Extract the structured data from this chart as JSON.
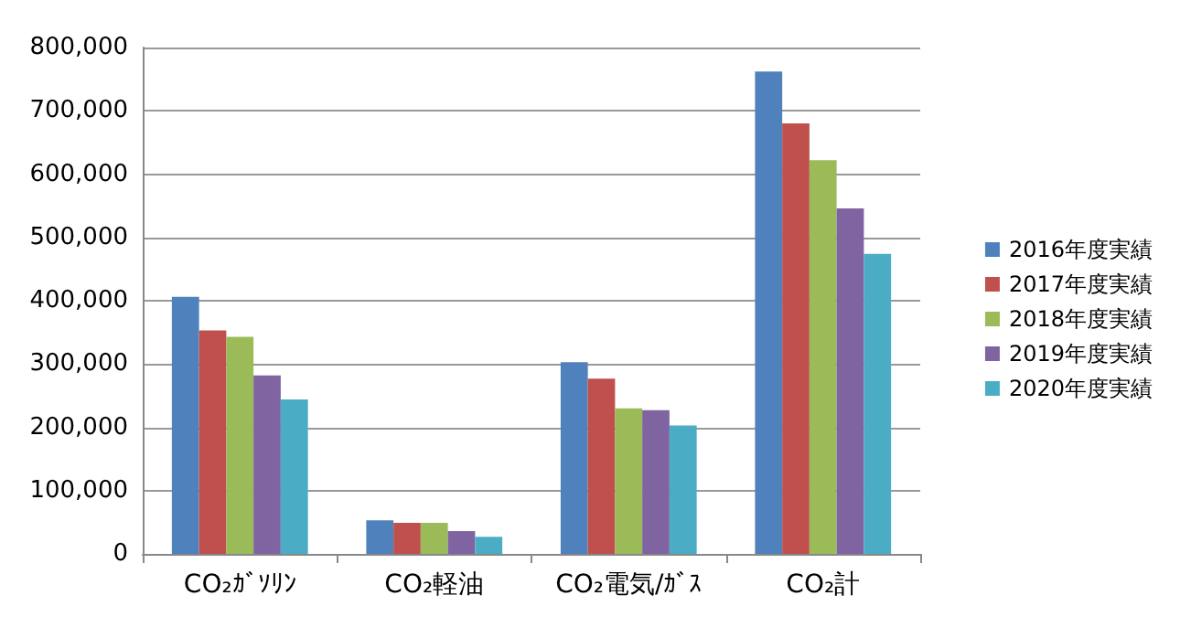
{
  "chart_data": {
    "type": "bar",
    "categories": [
      "CO₂ｶﾞｿﾘﾝ",
      "CO₂軽油",
      "CO₂電気/ｶﾞｽ",
      "CO₂計"
    ],
    "series": [
      {
        "name": "2016年度実績",
        "color": "#4f81bd",
        "values": [
          406000,
          53000,
          303000,
          762000
        ]
      },
      {
        "name": "2017年度実績",
        "color": "#c0504d",
        "values": [
          353000,
          49000,
          277000,
          680000
        ]
      },
      {
        "name": "2018年度実績",
        "color": "#9bbb59",
        "values": [
          343000,
          49000,
          230000,
          622000
        ]
      },
      {
        "name": "2019年度実績",
        "color": "#8064a2",
        "values": [
          282000,
          36000,
          227000,
          546000
        ]
      },
      {
        "name": "2020年度実績",
        "color": "#4bacc6",
        "values": [
          244000,
          27000,
          203000,
          474000
        ]
      }
    ],
    "ylim": [
      0,
      800000
    ],
    "yticks": [
      0,
      {
        "value": 100000,
        "label": "100,000"
      },
      {
        "value": 200000,
        "label": "200,000"
      },
      {
        "value": 300000,
        "label": "300,000"
      },
      {
        "value": 400000,
        "label": "400,000"
      },
      {
        "value": 500000,
        "label": "500,000"
      },
      {
        "value": 600000,
        "label": "600,000"
      },
      {
        "value": 700000,
        "label": "700,000"
      },
      {
        "value": 800000,
        "label": "800,000"
      }
    ],
    "grid": "y",
    "legend": "right"
  }
}
